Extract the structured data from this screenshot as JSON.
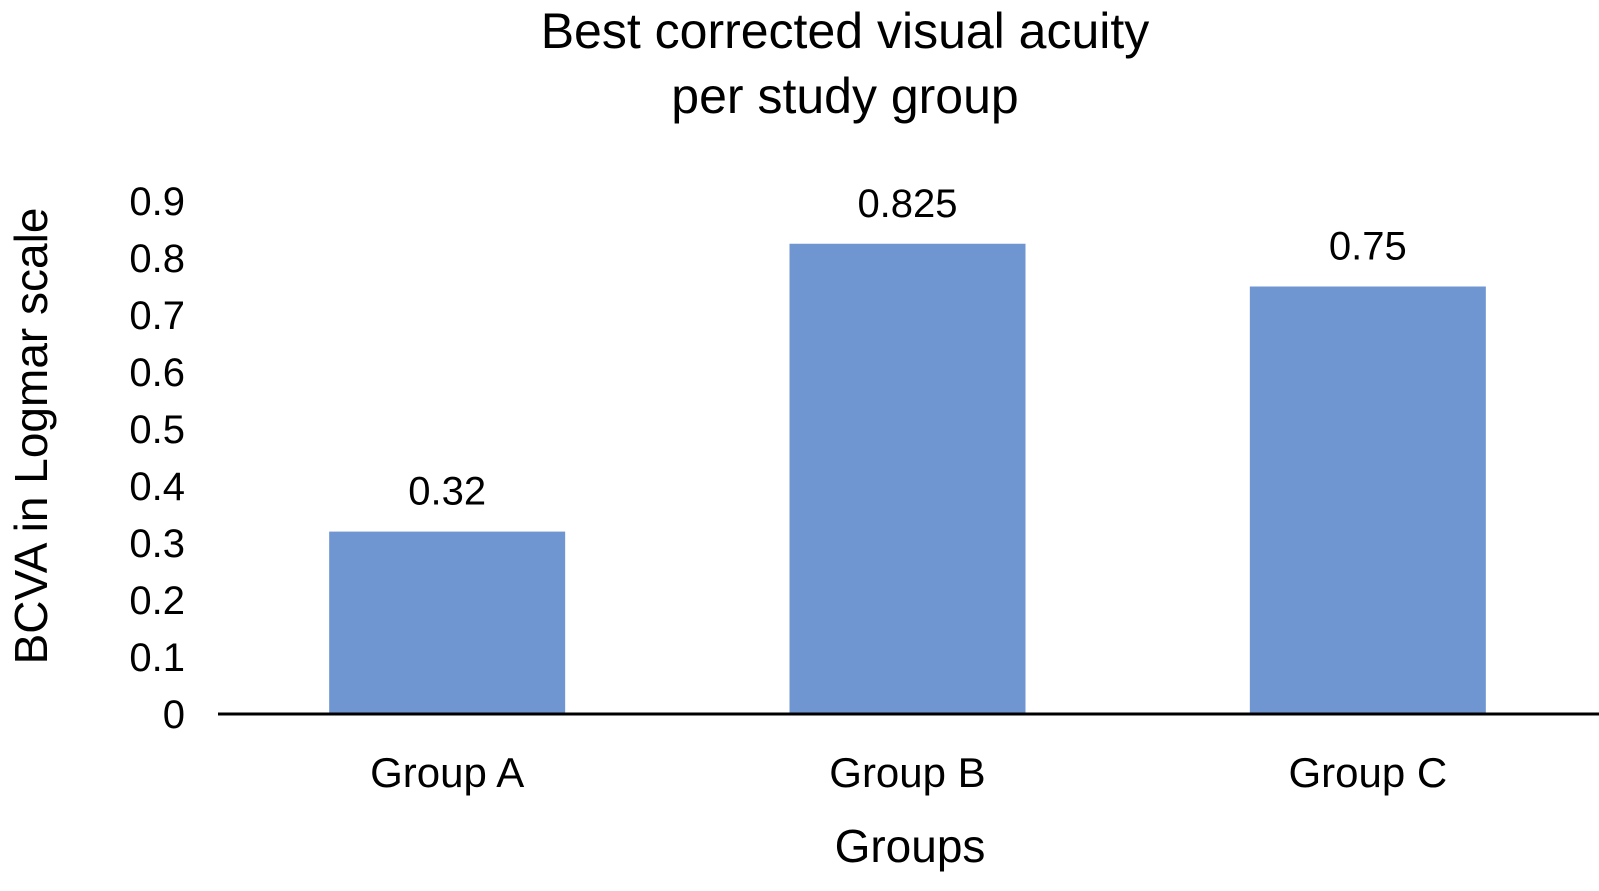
{
  "chart_data": {
    "type": "bar",
    "title_lines": [
      "Best corrected visual acuity",
      "per study group"
    ],
    "xlabel": "Groups",
    "ylabel": "BCVA in Logmar scale",
    "categories": [
      "Group A",
      "Group B",
      "Group C"
    ],
    "values": [
      0.32,
      0.825,
      0.75
    ],
    "data_labels": [
      "0.32",
      "0.825",
      "0.75"
    ],
    "yticks": [
      "0",
      "0.1",
      "0.2",
      "0.3",
      "0.4",
      "0.5",
      "0.6",
      "0.7",
      "0.8",
      "0.9"
    ],
    "ylim": [
      0,
      0.9
    ],
    "grid": false,
    "legend": "none",
    "bar_color": "#6f96d1"
  }
}
